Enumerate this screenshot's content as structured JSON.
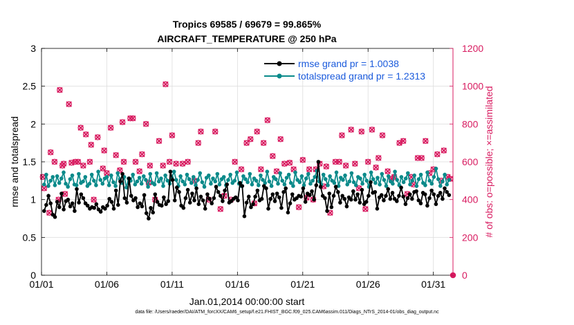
{
  "chart_data": {
    "type": "line",
    "title": "Tropics 69585 / 69679 = 99.865%",
    "subtitle": "AIRCRAFT_TEMPERATURE @ 250 hPa",
    "xlabel": "Jan.01,2014 00:00:00 start",
    "ylabel": "rmse and totalspread",
    "y2label": "# of obs: o=possible; ×=assimilated",
    "xlim": [
      0,
      31.5
    ],
    "ylim": [
      0,
      3
    ],
    "y2lim": [
      0,
      1200
    ],
    "x_ticks": [
      0,
      5,
      10,
      15,
      20,
      25,
      30
    ],
    "x_tick_labels": [
      "01/01",
      "01/06",
      "01/11",
      "01/16",
      "01/21",
      "01/26",
      "01/31"
    ],
    "y_ticks": [
      0,
      0.5,
      1,
      1.5,
      2,
      2.5,
      3
    ],
    "y_tick_labels": [
      "0",
      "0.5",
      "1",
      "1.5",
      "2",
      "2.5",
      "3"
    ],
    "y2_ticks": [
      0,
      200,
      400,
      600,
      800,
      1000,
      1200
    ],
    "y2_tick_labels": [
      "0",
      "200",
      "400",
      "600",
      "800",
      "1000",
      "1200"
    ],
    "legend_position": "top-right",
    "grid": true,
    "colors": {
      "rmse": "#000000",
      "spread": "#0a8a8a",
      "obs": "#d81b60",
      "legend_text": "#1a5adc",
      "grid": "#dddddd"
    },
    "series": [
      {
        "name": "rmse grand pr = 1.0038",
        "axis": "left",
        "values": [
          0.85,
          0.93,
          1.05,
          0.95,
          0.8,
          0.77,
          0.97,
          0.9,
          1.08,
          0.87,
          0.98,
          1.0,
          0.91,
          0.95,
          0.85,
          1.14,
          0.96,
          1.07,
          1.02,
          0.95,
          0.92,
          0.88,
          0.9,
          0.89,
          0.94,
          0.87,
          0.84,
          0.9,
          0.88,
          0.92,
          1.01,
          0.97,
          0.88,
          1.12,
          0.93,
          1.24,
          1.34,
          1.02,
          0.96,
          1.28,
          1.05,
          0.99,
          1.02,
          0.9,
          0.95,
          0.91,
          1.06,
          0.82,
          0.75,
          0.89,
          0.83,
          1.07,
          0.97,
          0.93,
          0.92,
          1.03,
          0.94,
          0.98,
          1.37,
          1.26,
          0.99,
          1.16,
          1.1,
          0.92,
          0.89,
          1.02,
          1.13,
          0.96,
          1.08,
          0.99,
          1.15,
          0.94,
          1.04,
          0.99,
          0.88,
          1.07,
          1.01,
          0.95,
          1.02,
          1.17,
          1.1,
          1.05,
          0.98,
          1.12,
          1.2,
          0.96,
          0.98,
          1.01,
          1.03,
          0.99,
          1.22,
          1.18,
          0.78,
          0.96,
          1.04,
          0.9,
          0.94,
          1.04,
          1.12,
          0.99,
          1.01,
          1.18,
          1.15,
          0.88,
          1.01,
          1.07,
          0.98,
          1.08,
          1.03,
          0.89,
          1.1,
          1.15,
          0.83,
          0.95,
          1.07,
          1.0,
          1.02,
          1.05,
          1.04,
          1.15,
          0.97,
          1.08,
          1.06,
          1.11,
          1.0,
          1.19,
          1.5,
          1.17,
          1.05,
          1.02,
          0.85,
          1.08,
          0.9,
          1.05,
          1.17,
          1.1,
          0.96,
          1.05,
          1.01,
          0.91,
          1.03,
          1.0,
          1.11,
          1.0,
          1.07,
          0.96,
          1.13,
          0.94,
          0.97,
          1.05,
          1.23,
          1.09,
          1.1,
          0.88,
          1.03,
          1.06,
          0.99,
          1.05,
          1.14,
          1.01,
          1.09,
          1.01,
          0.98,
          1.05,
          1.16,
          1.04,
          0.94,
          1.02,
          1.07,
          1.01,
          1.1,
          1.11,
          0.99,
          0.95,
          1.09,
          1.07,
          0.92,
          1.02,
          1.12,
          1.07,
          0.94,
          1.05,
          1.09,
          1.01,
          1.15,
          1.1,
          1.06
        ]
      },
      {
        "name": "totalspread grand pr = 1.2313",
        "axis": "left",
        "values": [
          1.2,
          1.33,
          1.18,
          1.25,
          1.3,
          1.19,
          1.31,
          1.22,
          1.28,
          1.36,
          1.21,
          1.17,
          1.27,
          1.32,
          1.2,
          1.19,
          1.34,
          1.22,
          1.24,
          1.3,
          1.18,
          1.21,
          1.33,
          1.25,
          1.19,
          1.37,
          1.26,
          1.21,
          1.28,
          1.3,
          1.19,
          1.32,
          1.23,
          1.18,
          1.35,
          1.27,
          1.22,
          1.3,
          1.16,
          1.28,
          1.25,
          1.33,
          1.2,
          1.24,
          1.29,
          1.21,
          1.31,
          1.26,
          1.17,
          1.34,
          1.22,
          1.2,
          1.35,
          1.24,
          1.28,
          1.18,
          1.32,
          1.25,
          1.21,
          1.29,
          1.37,
          1.26,
          1.18,
          1.31,
          1.24,
          1.2,
          1.33,
          1.27,
          1.22,
          1.3,
          1.19,
          1.26,
          1.35,
          1.23,
          1.17,
          1.29,
          1.32,
          1.21,
          1.28,
          1.24,
          1.34,
          1.2,
          1.27,
          1.3,
          1.19,
          1.26,
          1.33,
          1.22,
          1.25,
          1.36,
          1.21,
          1.18,
          1.31,
          1.27,
          1.23,
          1.34,
          1.2,
          1.28,
          1.25,
          1.19,
          1.32,
          1.26,
          1.22,
          1.37,
          1.24,
          1.18,
          1.3,
          1.27,
          1.21,
          1.35,
          1.25,
          1.2,
          1.29,
          1.33,
          1.22,
          1.18,
          1.36,
          1.26,
          1.23,
          1.31,
          1.19,
          1.28,
          1.34,
          1.21,
          1.25,
          1.3,
          1.38,
          1.24,
          1.2,
          1.33,
          1.27,
          1.19,
          1.31,
          1.25,
          1.22,
          1.36,
          1.18,
          1.29,
          1.26,
          1.32,
          1.2,
          1.24,
          1.35,
          1.23,
          1.19,
          1.3,
          1.28,
          1.21,
          1.33,
          1.25,
          1.17,
          1.36,
          1.27,
          1.22,
          1.29,
          1.2,
          1.34,
          1.26,
          1.18,
          1.31,
          1.24,
          1.21,
          1.37,
          1.26,
          1.19,
          1.3,
          1.23,
          1.28,
          1.35,
          1.2,
          1.25,
          1.32,
          1.18,
          1.27,
          1.33,
          1.22,
          1.19,
          1.36,
          1.25,
          1.21,
          1.3,
          1.41,
          1.27,
          1.18,
          1.24,
          1.33,
          1.2,
          1.26
        ]
      },
      {
        "name": "# of obs possible",
        "axis": "right",
        "marker": "circle",
        "values": [
          495,
          470,
          440,
          525,
          395,
          570,
          470,
          420,
          440,
          540,
          510,
          545,
          465,
          410,
          595,
          500,
          520,
          555,
          485,
          460,
          540,
          470,
          520,
          545,
          490,
          510,
          475,
          555,
          505,
          520,
          470,
          540,
          490,
          505,
          560,
          515,
          470,
          520,
          455,
          540,
          510,
          560,
          480,
          525,
          505,
          530,
          470,
          545,
          515,
          505,
          555,
          470,
          530,
          500,
          520,
          555,
          465,
          500,
          540,
          515,
          585,
          500,
          530,
          490,
          555,
          510,
          500,
          545,
          475,
          540,
          520,
          480,
          530,
          505,
          470,
          545,
          515,
          555,
          495,
          505,
          545,
          485,
          525,
          510,
          480,
          560,
          500,
          535,
          515,
          480,
          545,
          505,
          535,
          520,
          490,
          560,
          505,
          470,
          545,
          515,
          500,
          540,
          490,
          520,
          575,
          515,
          485,
          500,
          535,
          470,
          545,
          520,
          495,
          510,
          540,
          480,
          555,
          515,
          500,
          540,
          520,
          560,
          485,
          535,
          500,
          510,
          545,
          480,
          520,
          555,
          505,
          540,
          490,
          520,
          495,
          560,
          505,
          480,
          540,
          515,
          500,
          545,
          520,
          470,
          560,
          505,
          520,
          550,
          500,
          485,
          540,
          515,
          470,
          545,
          505,
          525,
          490,
          560,
          510,
          475,
          545,
          520,
          500,
          540,
          480,
          515,
          560,
          500,
          485,
          540,
          525,
          505,
          495,
          545,
          470,
          560,
          515,
          500,
          540,
          520,
          490,
          555,
          505,
          520,
          475,
          540,
          510,
          480,
          0
        ]
      },
      {
        "name": "# of obs assimilated",
        "axis": "right",
        "marker": "x",
        "values": [
          495,
          470,
          440,
          525,
          395,
          570,
          470,
          420,
          440,
          540,
          510,
          545,
          465,
          410,
          595,
          500,
          520,
          555,
          485,
          460,
          540,
          470,
          520,
          545,
          490,
          510,
          475,
          555,
          505,
          520,
          470,
          540,
          490,
          505,
          560,
          515,
          470,
          520,
          455,
          540,
          510,
          560,
          480,
          525,
          505,
          530,
          470,
          545,
          515,
          505,
          555,
          470,
          530,
          500,
          520,
          555,
          465,
          500,
          540,
          515,
          585,
          500,
          530,
          490,
          555,
          510,
          500,
          545,
          475,
          540,
          520,
          480,
          530,
          505,
          470,
          545,
          515,
          555,
          495,
          505,
          545,
          485,
          525,
          510,
          480,
          560,
          500,
          535,
          515,
          480,
          545,
          505,
          535,
          520,
          490,
          560,
          505,
          470,
          545,
          515,
          500,
          540,
          490,
          520,
          575,
          515,
          485,
          500,
          535,
          470,
          545,
          520,
          495,
          510,
          540,
          480,
          555,
          515,
          500,
          540,
          520,
          560,
          485,
          535,
          500,
          510,
          545,
          480,
          520,
          555,
          505,
          540,
          490,
          520,
          495,
          560,
          505,
          480,
          540,
          515,
          500,
          545,
          520,
          470,
          560,
          505,
          520,
          550,
          500,
          485,
          540,
          515,
          470,
          545,
          505,
          525,
          490,
          560,
          510,
          475,
          545,
          520,
          500,
          540,
          480,
          515,
          560,
          500,
          485,
          540,
          525,
          505,
          495,
          545,
          470,
          560,
          515,
          500,
          540,
          520,
          490,
          555,
          505,
          520,
          475,
          540,
          510,
          480,
          0
        ]
      }
    ],
    "obs_x_values": [
      0.1,
      0.2,
      0.6,
      0.7,
      1.0,
      1.3,
      1.4,
      1.6,
      1.7,
      1.8,
      2.1,
      2.3,
      2.6,
      2.8,
      3.0,
      3.2,
      3.4,
      3.7,
      3.8,
      4.0,
      4.3,
      4.7,
      4.8,
      5.0,
      5.3,
      5.7,
      6.0,
      6.2,
      6.3,
      6.8,
      7.0,
      7.2,
      7.5,
      7.7,
      8.0,
      8.2,
      8.3,
      8.7,
      9.0,
      9.3,
      9.5,
      9.8,
      10.0,
      10.3,
      10.8,
      11.2,
      11.7,
      12.0,
      12.2,
      12.8,
      13.3,
      13.7,
      14.0,
      14.5,
      14.8,
      15.3,
      15.7,
      16.0,
      16.3,
      16.5,
      16.8,
      17.0,
      17.3,
      17.7,
      18.0,
      18.3,
      18.6,
      19.0,
      19.3,
      19.7,
      20.0,
      20.3,
      20.5,
      20.8,
      21.0,
      21.3,
      21.6,
      21.8,
      22.1,
      22.5,
      22.8,
      23.0,
      23.3,
      23.7,
      24.0,
      24.3,
      24.5,
      24.8,
      25.0,
      25.3,
      25.6,
      25.8,
      26.1,
      26.5,
      26.8,
      27.0,
      27.4,
      27.7,
      28.0,
      28.3,
      28.5,
      28.8,
      29.1,
      29.4,
      29.7,
      30.0,
      30.3,
      30.6,
      30.8,
      31.1,
      31.3
    ],
    "obs_values": [
      520,
      460,
      330,
      650,
      600,
      400,
      980,
      580,
      590,
      430,
      905,
      595,
      600,
      600,
      780,
      580,
      745,
      600,
      690,
      400,
      730,
      565,
      660,
      540,
      780,
      635,
      555,
      810,
      600,
      830,
      830,
      600,
      550,
      640,
      800,
      490,
      580,
      400,
      710,
      580,
      1010,
      600,
      740,
      590,
      590,
      600,
      500,
      700,
      760,
      400,
      760,
      350,
      420,
      400,
      600,
      560,
      700,
      720,
      380,
      760,
      560,
      700,
      820,
      630,
      550,
      720,
      590,
      595,
      560,
      360,
      610,
      410,
      560,
      400,
      560,
      590,
      470,
      575,
      330,
      600,
      600,
      740,
      580,
      770,
      590,
      460,
      760,
      350,
      600,
      770,
      570,
      620,
      740,
      550,
      510,
      520,
      700,
      710,
      430,
      520,
      480,
      620,
      620,
      710,
      540,
      560,
      640,
      500,
      660,
      520,
      510
    ]
  },
  "footer": {
    "data_file": "data file: /Users/raeder/DAI/ATM_forcXX/CAM6_setup/f.e21.FHIST_BGC.f09_025.CAM6assim.011/Diags_NTrS_2014-01/obs_diag_output.nc"
  }
}
